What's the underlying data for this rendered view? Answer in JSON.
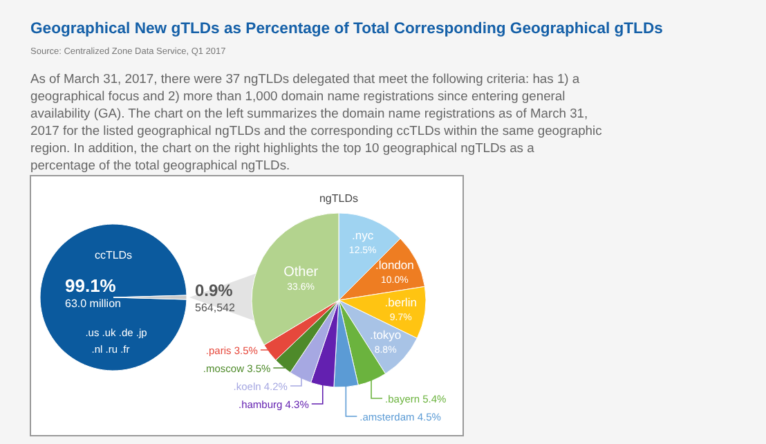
{
  "chart_data": [
    {
      "type": "pie",
      "title": "Geographical New gTLDs as Percentage of Total Corresponding Geographical gTLDs",
      "categories": [
        "ccTLDs",
        null
      ],
      "values": [
        99.1,
        0.9
      ],
      "colors": [
        "#0b5a9e",
        "#c9c9c9"
      ],
      "value_labels": [
        "99.1%",
        "0.9%"
      ],
      "annotations": [
        "Source: Centralized Zone Data Service, Q1 2017",
        "As of March 31, 2017, there were 37 ngTLDs delegated that meet the following criteria: has 1) a geographical focus and 2) more than 1,000 domain name registrations since entering general availability (GA). The chart on the left summarizes the domain name registrations as of March 31, 2017 for the listed geographical ngTLDs and the corresponding ccTLDs within the same geographic region. In addition, the chart on the right highlights the top 10 geographical ngTLDs as a percentage of the total geographical ngTLDs.",
        "63.0 million",
        "564,542",
        ".us .uk .de .jp",
        ".nl .ru .fr"
      ]
    },
    {
      "type": "pie",
      "title": "ngTLDs",
      "categories": [
        ".nyc",
        ".london",
        ".berlin",
        ".tokyo",
        ".bayern",
        ".amsterdam",
        ".hamburg",
        ".koeln",
        ".moscow",
        ".paris",
        "Other"
      ],
      "values": [
        12.5,
        10.0,
        9.7,
        8.8,
        5.4,
        4.5,
        4.3,
        4.2,
        3.5,
        3.5,
        33.6
      ],
      "colors": [
        "#9fd3f1",
        "#ee7d22",
        "#ffc412",
        "#a8c3e6",
        "#6bb33e",
        "#5b9bd5",
        "#6320b0",
        "#a6a8e2",
        "#4e8a2a",
        "#e6483c",
        "#b3d38e"
      ],
      "value_labels": [
        "12.5%",
        "10.0%",
        "9.7%",
        "8.8%",
        "5.4%",
        "4.5%",
        "4.3%",
        "4.2%",
        "3.5%",
        "3.5%",
        "33.6%"
      ]
    }
  ]
}
